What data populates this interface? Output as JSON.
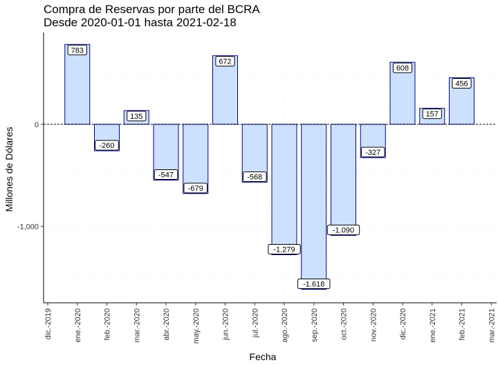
{
  "chart_data": {
    "type": "bar",
    "title": "Compra de Reservas por parte del BCRA",
    "subtitle": "Desde 2020-01-01 hasta 2021-02-18",
    "xlabel": "Fecha",
    "ylabel": "Millones de Dólares",
    "x_ticks": [
      "dic.-2019",
      "ene.-2020",
      "feb.-2020",
      "mar.-2020",
      "abr.-2020",
      "may.-2020",
      "jun.-2020",
      "jul.-2020",
      "ago.-2020",
      "sep.-2020",
      "oct.-2020",
      "nov.-2020",
      "dic.-2020",
      "ene.-2021",
      "feb.-2021",
      "mar.-2021"
    ],
    "categories": [
      "ene.-2020",
      "feb.-2020",
      "mar.-2020",
      "abr.-2020",
      "may.-2020",
      "jun.-2020",
      "jul.-2020",
      "ago.-2020",
      "sep.-2020",
      "oct.-2020",
      "nov.-2020",
      "dic.-2020",
      "ene.-2021",
      "feb.-2021"
    ],
    "values": [
      783,
      -260,
      135,
      -547,
      -679,
      672,
      -568,
      -1279,
      -1618,
      -1090,
      -327,
      608,
      157,
      456
    ],
    "value_labels": [
      "783",
      "-260",
      "135",
      "-547",
      "-679",
      "672",
      "-568",
      "-1.279",
      "-1.618",
      "-1.090",
      "-327",
      "608",
      "157",
      "456"
    ],
    "y_ticks": [
      -1000,
      0
    ],
    "y_tick_labels": [
      "-1,000",
      "0"
    ],
    "ylim": [
      -1750,
      900
    ],
    "zero_line": true,
    "grid": true,
    "bar_fill": "#cce0ff",
    "bar_stroke": "#00008b"
  }
}
